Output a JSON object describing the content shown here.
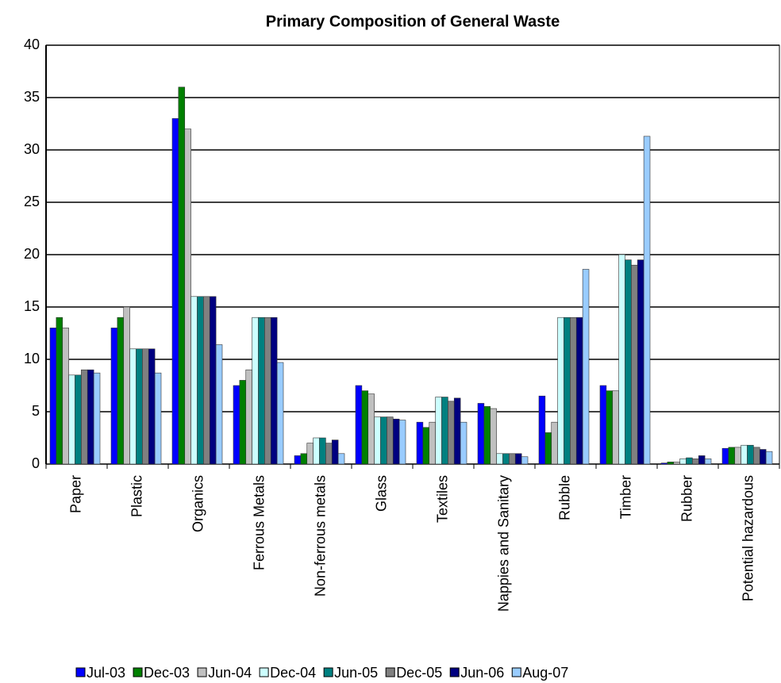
{
  "chart_data": {
    "type": "bar",
    "title": "Primary Composition of General Waste",
    "categories": [
      "Paper",
      "Plastic",
      "Organics",
      "Ferrous Metals",
      "Non-ferrous metals",
      "Glass",
      "Textiles",
      "Nappies and Sanitary",
      "Rubble",
      "Timber",
      "Rubber",
      "Potential hazardous"
    ],
    "series": [
      {
        "name": "Jul-03",
        "color": "#0000ff",
        "values": [
          13,
          13,
          33,
          7.5,
          0.8,
          7.5,
          4,
          5.8,
          6.5,
          7.5,
          0.1,
          1.5
        ]
      },
      {
        "name": "Dec-03",
        "color": "#008000",
        "values": [
          14,
          14,
          36,
          8,
          1,
          7,
          3.5,
          5.5,
          3,
          7,
          0.2,
          1.6
        ]
      },
      {
        "name": "Jun-04",
        "color": "#c0c0c0",
        "values": [
          13,
          15,
          32,
          9,
          2,
          6.7,
          4,
          5.3,
          4,
          7,
          0.2,
          1.6
        ]
      },
      {
        "name": "Dec-04",
        "color": "#ccffff",
        "values": [
          8.5,
          11,
          16,
          14,
          2.5,
          4.5,
          6.4,
          1,
          14,
          20,
          0.5,
          1.8
        ]
      },
      {
        "name": "Jun-05",
        "color": "#008080",
        "values": [
          8.5,
          11,
          16,
          14,
          2.5,
          4.5,
          6.4,
          1,
          14,
          19.5,
          0.6,
          1.8
        ]
      },
      {
        "name": "Dec-05",
        "color": "#808080",
        "values": [
          9,
          11,
          16,
          14,
          2,
          4.5,
          6,
          1,
          14,
          19,
          0.5,
          1.6
        ]
      },
      {
        "name": "Jun-06",
        "color": "#000080",
        "values": [
          9,
          11,
          16,
          14,
          2.3,
          4.3,
          6.3,
          1,
          14,
          19.5,
          0.8,
          1.4
        ]
      },
      {
        "name": "Aug-07",
        "color": "#99ccff",
        "values": [
          8.7,
          8.7,
          11.4,
          9.7,
          1,
          4.2,
          4,
          0.7,
          18.6,
          31.3,
          0.5,
          1.2
        ]
      }
    ],
    "ylim": [
      0,
      40
    ],
    "yticks": [
      0,
      5,
      10,
      15,
      20,
      25,
      30,
      35,
      40
    ],
    "grid": true,
    "legend": "bottom"
  }
}
